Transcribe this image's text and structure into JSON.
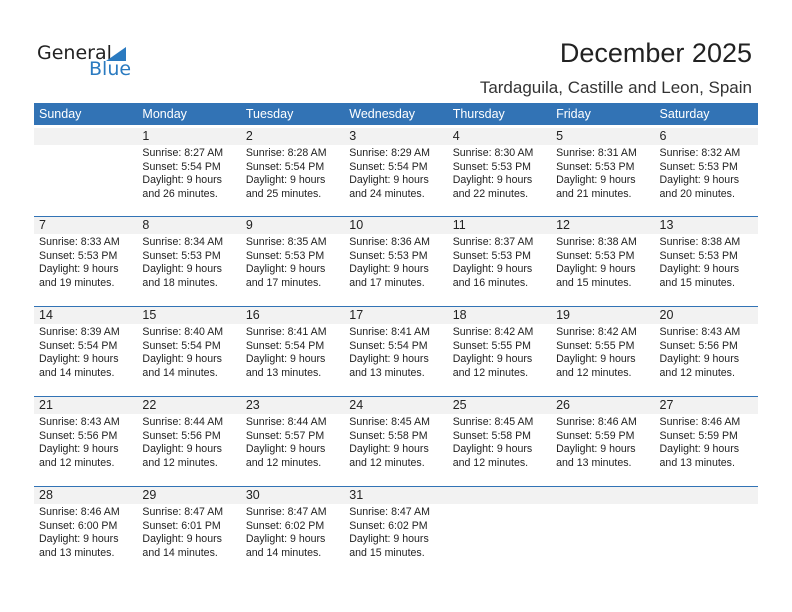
{
  "logo": {
    "general": "General",
    "blue": "Blue"
  },
  "title": "December 2025",
  "location": "Tardaguila, Castille and Leon, Spain",
  "days": [
    "Sunday",
    "Monday",
    "Tuesday",
    "Wednesday",
    "Thursday",
    "Friday",
    "Saturday"
  ],
  "weeks": [
    [
      null,
      {
        "d": "1",
        "sr": "Sunrise: 8:27 AM",
        "ss": "Sunset: 5:54 PM",
        "dl": "Daylight: 9 hours",
        "dm": "and 26 minutes."
      },
      {
        "d": "2",
        "sr": "Sunrise: 8:28 AM",
        "ss": "Sunset: 5:54 PM",
        "dl": "Daylight: 9 hours",
        "dm": "and 25 minutes."
      },
      {
        "d": "3",
        "sr": "Sunrise: 8:29 AM",
        "ss": "Sunset: 5:54 PM",
        "dl": "Daylight: 9 hours",
        "dm": "and 24 minutes."
      },
      {
        "d": "4",
        "sr": "Sunrise: 8:30 AM",
        "ss": "Sunset: 5:53 PM",
        "dl": "Daylight: 9 hours",
        "dm": "and 22 minutes."
      },
      {
        "d": "5",
        "sr": "Sunrise: 8:31 AM",
        "ss": "Sunset: 5:53 PM",
        "dl": "Daylight: 9 hours",
        "dm": "and 21 minutes."
      },
      {
        "d": "6",
        "sr": "Sunrise: 8:32 AM",
        "ss": "Sunset: 5:53 PM",
        "dl": "Daylight: 9 hours",
        "dm": "and 20 minutes."
      }
    ],
    [
      {
        "d": "7",
        "sr": "Sunrise: 8:33 AM",
        "ss": "Sunset: 5:53 PM",
        "dl": "Daylight: 9 hours",
        "dm": "and 19 minutes."
      },
      {
        "d": "8",
        "sr": "Sunrise: 8:34 AM",
        "ss": "Sunset: 5:53 PM",
        "dl": "Daylight: 9 hours",
        "dm": "and 18 minutes."
      },
      {
        "d": "9",
        "sr": "Sunrise: 8:35 AM",
        "ss": "Sunset: 5:53 PM",
        "dl": "Daylight: 9 hours",
        "dm": "and 17 minutes."
      },
      {
        "d": "10",
        "sr": "Sunrise: 8:36 AM",
        "ss": "Sunset: 5:53 PM",
        "dl": "Daylight: 9 hours",
        "dm": "and 17 minutes."
      },
      {
        "d": "11",
        "sr": "Sunrise: 8:37 AM",
        "ss": "Sunset: 5:53 PM",
        "dl": "Daylight: 9 hours",
        "dm": "and 16 minutes."
      },
      {
        "d": "12",
        "sr": "Sunrise: 8:38 AM",
        "ss": "Sunset: 5:53 PM",
        "dl": "Daylight: 9 hours",
        "dm": "and 15 minutes."
      },
      {
        "d": "13",
        "sr": "Sunrise: 8:38 AM",
        "ss": "Sunset: 5:53 PM",
        "dl": "Daylight: 9 hours",
        "dm": "and 15 minutes."
      }
    ],
    [
      {
        "d": "14",
        "sr": "Sunrise: 8:39 AM",
        "ss": "Sunset: 5:54 PM",
        "dl": "Daylight: 9 hours",
        "dm": "and 14 minutes."
      },
      {
        "d": "15",
        "sr": "Sunrise: 8:40 AM",
        "ss": "Sunset: 5:54 PM",
        "dl": "Daylight: 9 hours",
        "dm": "and 14 minutes."
      },
      {
        "d": "16",
        "sr": "Sunrise: 8:41 AM",
        "ss": "Sunset: 5:54 PM",
        "dl": "Daylight: 9 hours",
        "dm": "and 13 minutes."
      },
      {
        "d": "17",
        "sr": "Sunrise: 8:41 AM",
        "ss": "Sunset: 5:54 PM",
        "dl": "Daylight: 9 hours",
        "dm": "and 13 minutes."
      },
      {
        "d": "18",
        "sr": "Sunrise: 8:42 AM",
        "ss": "Sunset: 5:55 PM",
        "dl": "Daylight: 9 hours",
        "dm": "and 12 minutes."
      },
      {
        "d": "19",
        "sr": "Sunrise: 8:42 AM",
        "ss": "Sunset: 5:55 PM",
        "dl": "Daylight: 9 hours",
        "dm": "and 12 minutes."
      },
      {
        "d": "20",
        "sr": "Sunrise: 8:43 AM",
        "ss": "Sunset: 5:56 PM",
        "dl": "Daylight: 9 hours",
        "dm": "and 12 minutes."
      }
    ],
    [
      {
        "d": "21",
        "sr": "Sunrise: 8:43 AM",
        "ss": "Sunset: 5:56 PM",
        "dl": "Daylight: 9 hours",
        "dm": "and 12 minutes."
      },
      {
        "d": "22",
        "sr": "Sunrise: 8:44 AM",
        "ss": "Sunset: 5:56 PM",
        "dl": "Daylight: 9 hours",
        "dm": "and 12 minutes."
      },
      {
        "d": "23",
        "sr": "Sunrise: 8:44 AM",
        "ss": "Sunset: 5:57 PM",
        "dl": "Daylight: 9 hours",
        "dm": "and 12 minutes."
      },
      {
        "d": "24",
        "sr": "Sunrise: 8:45 AM",
        "ss": "Sunset: 5:58 PM",
        "dl": "Daylight: 9 hours",
        "dm": "and 12 minutes."
      },
      {
        "d": "25",
        "sr": "Sunrise: 8:45 AM",
        "ss": "Sunset: 5:58 PM",
        "dl": "Daylight: 9 hours",
        "dm": "and 12 minutes."
      },
      {
        "d": "26",
        "sr": "Sunrise: 8:46 AM",
        "ss": "Sunset: 5:59 PM",
        "dl": "Daylight: 9 hours",
        "dm": "and 13 minutes."
      },
      {
        "d": "27",
        "sr": "Sunrise: 8:46 AM",
        "ss": "Sunset: 5:59 PM",
        "dl": "Daylight: 9 hours",
        "dm": "and 13 minutes."
      }
    ],
    [
      {
        "d": "28",
        "sr": "Sunrise: 8:46 AM",
        "ss": "Sunset: 6:00 PM",
        "dl": "Daylight: 9 hours",
        "dm": "and 13 minutes."
      },
      {
        "d": "29",
        "sr": "Sunrise: 8:47 AM",
        "ss": "Sunset: 6:01 PM",
        "dl": "Daylight: 9 hours",
        "dm": "and 14 minutes."
      },
      {
        "d": "30",
        "sr": "Sunrise: 8:47 AM",
        "ss": "Sunset: 6:02 PM",
        "dl": "Daylight: 9 hours",
        "dm": "and 14 minutes."
      },
      {
        "d": "31",
        "sr": "Sunrise: 8:47 AM",
        "ss": "Sunset: 6:02 PM",
        "dl": "Daylight: 9 hours",
        "dm": "and 15 minutes."
      },
      null,
      null,
      null
    ]
  ]
}
